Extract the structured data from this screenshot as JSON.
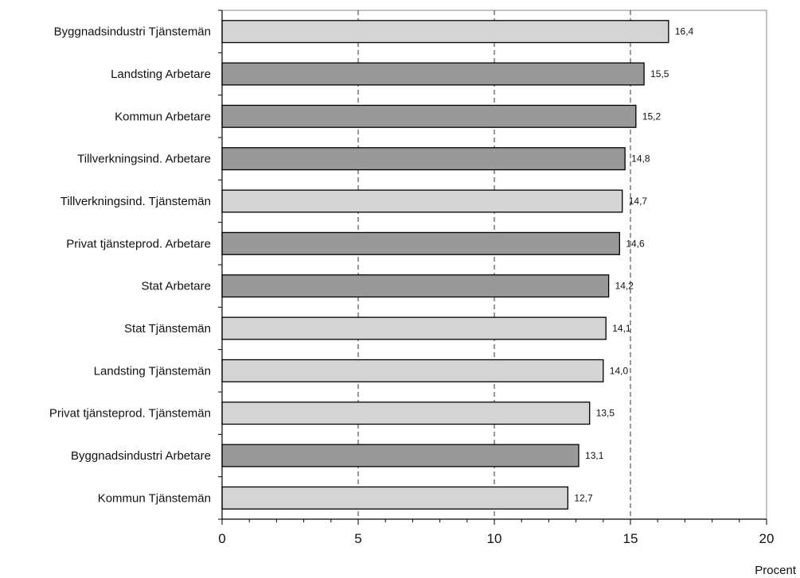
{
  "chart_data": {
    "type": "bar",
    "orientation": "horizontal",
    "categories": [
      "Byggnadsindustri Tjänstemän",
      "Landsting Arbetare",
      "Kommun Arbetare",
      "Tillverkningsind. Arbetare",
      "Tillverkningsind. Tjänstemän",
      "Privat tjänsteprod. Arbetare",
      "Stat Arbetare",
      "Stat Tjänstemän",
      "Landsting Tjänstemän",
      "Privat tjänsteprod. Tjänstemän",
      "Byggnadsindustri Arbetare",
      "Kommun Tjänstemän"
    ],
    "values": [
      16.4,
      15.5,
      15.2,
      14.8,
      14.7,
      14.6,
      14.2,
      14.1,
      14.0,
      13.5,
      13.1,
      12.7
    ],
    "value_labels": [
      "16,4",
      "15,5",
      "15,2",
      "14,8",
      "14,7",
      "14,6",
      "14,2",
      "14,1",
      "14,0",
      "13,5",
      "13,1",
      "12,7"
    ],
    "groups": [
      "Tjänstemän",
      "Arbetare",
      "Arbetare",
      "Arbetare",
      "Tjänstemän",
      "Arbetare",
      "Arbetare",
      "Tjänstemän",
      "Tjänstemän",
      "Tjänstemän",
      "Arbetare",
      "Tjänstemän"
    ],
    "group_colors": {
      "Arbetare": "#999999",
      "Tjänstemän": "#d4d4d4"
    },
    "xlim": [
      0,
      20
    ],
    "xticks": [
      0,
      5,
      10,
      15,
      20
    ],
    "xtick_labels": [
      "0",
      "5",
      "10",
      "15",
      "20"
    ],
    "minor_tick_step": 1,
    "xlabel": "Procent",
    "title": "",
    "grid": "dashed vertical at major ticks",
    "legend": "none"
  }
}
